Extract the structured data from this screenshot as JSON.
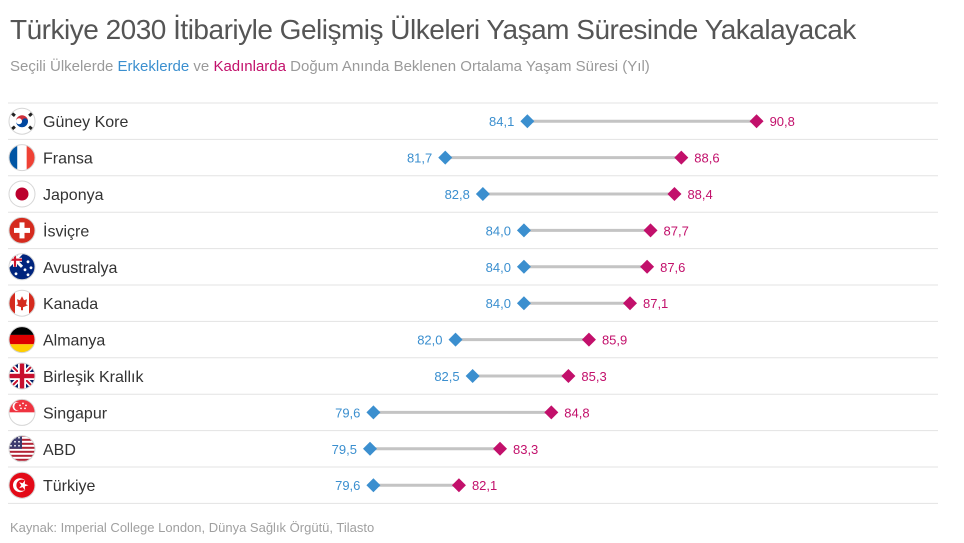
{
  "header": {
    "title": "Türkiye 2030 İtibariyle Gelişmiş Ülkeleri Yaşam Süresinde Yakalayacak",
    "subtitle_prefix": "Seçili Ülkelerde ",
    "subtitle_men": "Erkeklerde",
    "subtitle_and": " ve ",
    "subtitle_women": "Kadınlarda",
    "subtitle_suffix": " Doğum Anında Beklenen Ortalama Yaşam Süresi (Yıl)"
  },
  "source": "Kaynak: Imperial College London, Dünya Sağlık Örgütü, Tilasto",
  "colors": {
    "men": "#3b8fcf",
    "women": "#c2106b",
    "connector": "#c4c4c4",
    "divider": "#e3e3e3"
  },
  "chart_data": {
    "type": "dumbbell",
    "title": "Türkiye 2030 İtibariyle Gelişmiş Ülkeleri Yaşam Süresinde Yakalayacak",
    "xlim": [
      75,
      92
    ],
    "grid": false,
    "series": [
      {
        "name": "Erkeklerde",
        "marker": "diamond",
        "color": "#3b8fcf",
        "label_position": "left"
      },
      {
        "name": "Kadınlarda",
        "marker": "diamond",
        "color": "#c2106b",
        "label_position": "right"
      }
    ],
    "rows": [
      {
        "country": "Güney Kore",
        "flag": "south-korea-flag",
        "men": 84.1,
        "men_label": "84,1",
        "women": 90.8,
        "women_label": "90,8"
      },
      {
        "country": "Fransa",
        "flag": "france-flag",
        "men": 81.7,
        "men_label": "81,7",
        "women": 88.6,
        "women_label": "88,6"
      },
      {
        "country": "Japonya",
        "flag": "japan-flag",
        "men": 82.8,
        "men_label": "82,8",
        "women": 88.4,
        "women_label": "88,4"
      },
      {
        "country": "İsviçre",
        "flag": "switzerland-flag",
        "men": 84.0,
        "men_label": "84,0",
        "women": 87.7,
        "women_label": "87,7"
      },
      {
        "country": "Avustralya",
        "flag": "australia-flag",
        "men": 84.0,
        "men_label": "84,0",
        "women": 87.6,
        "women_label": "87,6"
      },
      {
        "country": "Kanada",
        "flag": "canada-flag",
        "men": 84.0,
        "men_label": "84,0",
        "women": 87.1,
        "women_label": "87,1"
      },
      {
        "country": "Almanya",
        "flag": "germany-flag",
        "men": 82.0,
        "men_label": "82,0",
        "women": 85.9,
        "women_label": "85,9"
      },
      {
        "country": "Birleşik Krallık",
        "flag": "united-kingdom-flag",
        "men": 82.5,
        "men_label": "82,5",
        "women": 85.3,
        "women_label": "85,3"
      },
      {
        "country": "Singapur",
        "flag": "singapore-flag",
        "men": 79.6,
        "men_label": "79,6",
        "women": 84.8,
        "women_label": "84,8"
      },
      {
        "country": "ABD",
        "flag": "usa-flag",
        "men": 79.5,
        "men_label": "79,5",
        "women": 83.3,
        "women_label": "83,3"
      },
      {
        "country": "Türkiye",
        "flag": "turkey-flag",
        "men": 79.6,
        "men_label": "79,6",
        "women": 82.1,
        "women_label": "82,1"
      }
    ]
  }
}
